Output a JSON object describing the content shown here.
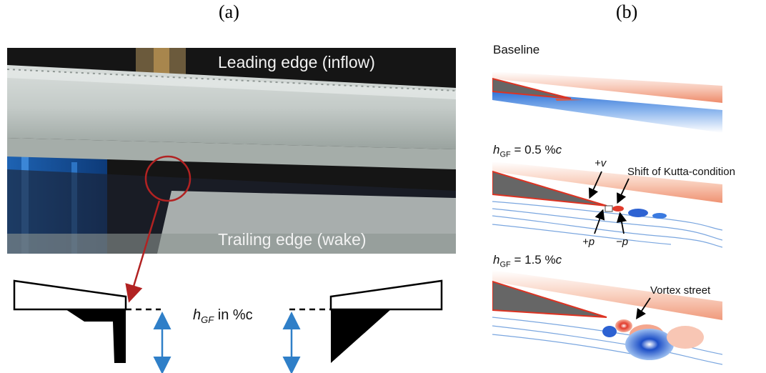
{
  "panels": {
    "a": "(a)",
    "b": "(b)"
  },
  "photo": {
    "leading_edge": "Leading edge (inflow)",
    "trailing_edge": "Trailing edge (wake)"
  },
  "sketch": {
    "h_label": "h",
    "h_sub": "GF",
    "h_suffix": " in %c"
  },
  "cases": [
    {
      "title": "Baseline"
    },
    {
      "h": "h",
      "sub": "GF",
      "value": " = 0.5 %",
      "unit": "c"
    },
    {
      "h": "h",
      "sub": "GF",
      "value": " = 1.5 %",
      "unit": "c"
    }
  ],
  "annotations": {
    "plus_v": "+v",
    "kutta": "Shift of Kutta-condition",
    "plus_p": "+p",
    "minus_p": "−p",
    "vortex": "Vortex street"
  },
  "colors": {
    "arrow_red": "#b22222",
    "arrow_blue": "#2f7fc8",
    "flow_red": "#e4533a",
    "flow_blue": "#2a6fd6"
  }
}
